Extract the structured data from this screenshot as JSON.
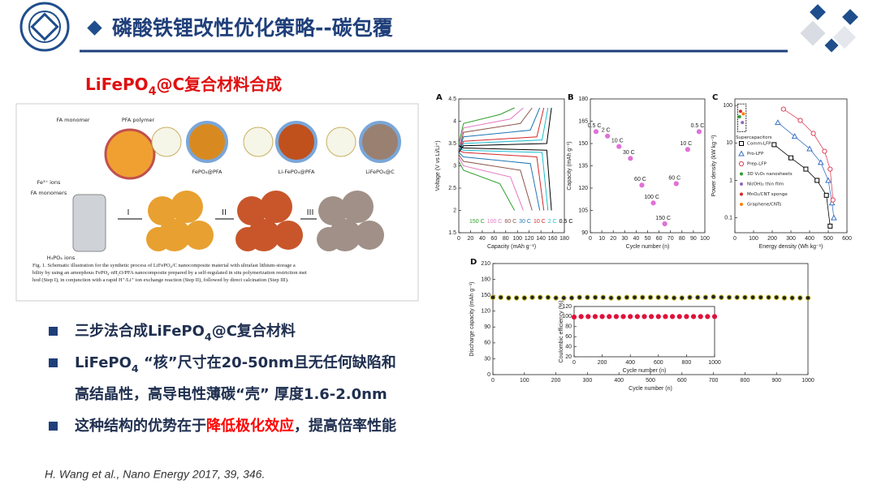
{
  "header": {
    "title": "磷酸铁锂改性优化策略--碳包覆"
  },
  "subtitle": [
    {
      "text": "LiFePO"
    },
    {
      "text": "4",
      "sub": true
    },
    {
      "text": "@C复合材料合成"
    }
  ],
  "figure": {
    "labels": [
      "FA monomer",
      "PFA polymer",
      "FePO₄@PFA",
      "Li-FePO₄@PFA",
      "LiFePO₄@C",
      "Fe³⁺ ions",
      "FA monomers",
      "H₃PO₄ ions",
      "I",
      "II",
      "III"
    ],
    "caption": "Fig. 1. Schematic illustration for the synthetic process of LiFePO₄/C nanocomposite material with ultrafast lithium-storage ability by using an amorphous FePO₄·nH₂O/PFA nanocomposite prepared by a self-regulated in situ polymerization restriction method (Step I), in conjunction with a rapid H⁺/Li⁺ ion exchange reaction (Step II), followed by direct calcination (Step III)."
  },
  "panels": [
    {
      "type": "line",
      "letter": "A",
      "xlabel": "Capacity (mAh g⁻¹)",
      "ylabel": "Voltage (V vs Li/Li⁺)",
      "xlim": [
        0,
        180
      ],
      "ylim": [
        1.5,
        4.5
      ],
      "xticks": [
        0,
        20,
        40,
        60,
        80,
        100,
        120,
        140,
        160,
        180
      ],
      "yticks": [
        1.5,
        2.0,
        2.5,
        3.0,
        3.5,
        4.0,
        4.5
      ],
      "series": [
        {
          "name": "150 C",
          "color": "#2ca02c",
          "x": [
            0,
            8,
            70,
            95
          ],
          "discharge": [
            3.1,
            2.9,
            2.6,
            2.0
          ],
          "charge": [
            3.5,
            3.95,
            4.15,
            4.3
          ]
        },
        {
          "name": "100 C",
          "color": "#e377c2",
          "x": [
            0,
            8,
            88,
            110
          ],
          "discharge": [
            3.2,
            3.0,
            2.75,
            2.0
          ],
          "charge": [
            3.4,
            3.85,
            4.05,
            4.3
          ]
        },
        {
          "name": "60 C",
          "color": "#8c564b",
          "x": [
            0,
            8,
            105,
            125
          ],
          "discharge": [
            3.25,
            3.1,
            2.9,
            2.0
          ],
          "charge": [
            3.3,
            3.75,
            3.95,
            4.3
          ]
        },
        {
          "name": "30 C",
          "color": "#1f77b4",
          "x": [
            0,
            8,
            122,
            138
          ],
          "discharge": [
            3.3,
            3.2,
            3.05,
            2.0
          ],
          "charge": [
            3.3,
            3.65,
            3.8,
            4.3
          ]
        },
        {
          "name": "10 C",
          "color": "#d62728",
          "x": [
            0,
            8,
            133,
            145
          ],
          "discharge": [
            3.35,
            3.3,
            3.2,
            2.0
          ],
          "charge": [
            3.3,
            3.55,
            3.65,
            4.3
          ]
        },
        {
          "name": "2 C",
          "color": "#17becf",
          "x": [
            0,
            8,
            142,
            152
          ],
          "discharge": [
            3.4,
            3.35,
            3.3,
            2.0
          ],
          "charge": [
            3.3,
            3.5,
            3.58,
            4.3
          ]
        },
        {
          "name": "0.5 C",
          "color": "#000000",
          "x": [
            0,
            8,
            150,
            158
          ],
          "discharge": [
            3.45,
            3.4,
            3.35,
            2.0
          ],
          "charge": [
            3.3,
            3.45,
            3.5,
            4.3
          ]
        }
      ]
    },
    {
      "type": "scatter",
      "letter": "B",
      "xlabel": "Cycle number (n)",
      "ylabel": "Capacity (mAh g⁻¹)",
      "xlim": [
        0,
        100
      ],
      "ylim": [
        90,
        180
      ],
      "xticks": [
        0,
        10,
        20,
        30,
        40,
        50,
        60,
        70,
        80,
        90,
        100
      ],
      "yticks": [
        90,
        105,
        120,
        135,
        150,
        165,
        180
      ],
      "series": [
        {
          "color": "#e070d8",
          "x": [
            5,
            15,
            25,
            35,
            45,
            55,
            65,
            75,
            85,
            95
          ],
          "values": [
            158,
            155,
            148,
            140,
            122,
            110,
            96,
            123,
            146,
            158
          ],
          "point_labels": [
            "0.5 C",
            "2 C",
            "10 C",
            "30 C",
            "60 C",
            "100 C",
            "150 C",
            "60 C",
            "10 C",
            "0.5 C"
          ]
        }
      ]
    },
    {
      "type": "scatter",
      "letter": "C",
      "xlabel": "Energy density (Wh kg⁻¹)",
      "ylabel": "Power density (kW kg⁻¹)",
      "log_y": true,
      "xlim": [
        0,
        600
      ],
      "ylim": [
        0.04,
        150
      ],
      "xticks": [
        0,
        100,
        200,
        300,
        400,
        500,
        600
      ],
      "yticks": [
        0.1,
        1,
        10,
        100
      ],
      "annotation": "Supercapacitors",
      "series": [
        {
          "name": "Comm-LFP",
          "color": "#000000",
          "marker": "square",
          "x": [
            210,
            300,
            380,
            440,
            490,
            510
          ],
          "values": [
            9,
            4,
            2,
            1,
            0.4,
            0.06
          ]
        },
        {
          "name": "Pro-LFP",
          "color": "#3a6fc4",
          "marker": "triangle",
          "x": [
            230,
            320,
            400,
            460,
            500,
            520,
            530
          ],
          "values": [
            35,
            15,
            7,
            3,
            1,
            0.25,
            0.1
          ]
        },
        {
          "name": "Prep-LFP",
          "color": "#e0405a",
          "marker": "circle",
          "x": [
            260,
            350,
            420,
            480,
            510,
            525
          ],
          "values": [
            80,
            40,
            18,
            6,
            2,
            0.3
          ]
        },
        {
          "name": "3D V₂O₅ nanosheets",
          "color": "#2ca02c",
          "marker": "dot",
          "x": [
            25
          ],
          "values": [
            50
          ]
        },
        {
          "name": "Ni(OH)₂ thin film",
          "color": "#9467bd",
          "marker": "dot",
          "x": [
            40
          ],
          "values": [
            35
          ]
        },
        {
          "name": "MnO₂/CNT sponge",
          "color": "#d62728",
          "marker": "dot",
          "x": [
            30
          ],
          "values": [
            70
          ]
        },
        {
          "name": "Graphene/CNTs",
          "color": "#ff7f0e",
          "marker": "dot",
          "x": [
            45
          ],
          "values": [
            60
          ]
        }
      ]
    },
    {
      "type": "scatter",
      "letter": "D",
      "xlabel": "Cycle number (n)",
      "ylabel": "Discharge capacity (mAh g⁻¹)",
      "xlim": [
        0,
        1000
      ],
      "ylim": [
        0,
        210
      ],
      "xticks": [
        0,
        100,
        200,
        300,
        400,
        500,
        600,
        700,
        800,
        900,
        1000
      ],
      "yticks": [
        0,
        30,
        60,
        90,
        120,
        150,
        180,
        210
      ],
      "series": [
        {
          "color": "#111111",
          "x": [
            0,
            25,
            50,
            75,
            100,
            125,
            150,
            175,
            200,
            225,
            250,
            275,
            300,
            325,
            350,
            375,
            400,
            425,
            450,
            475,
            500,
            525,
            550,
            575,
            600,
            625,
            650,
            675,
            700,
            725,
            750,
            775,
            800,
            825,
            850,
            875,
            900,
            925,
            950,
            975,
            1000
          ],
          "values": [
            146,
            146,
            145,
            145,
            145,
            146,
            146,
            146,
            145,
            145,
            145,
            146,
            146,
            146,
            146,
            145,
            145,
            146,
            146,
            146,
            146,
            146,
            146,
            145,
            145,
            146,
            146,
            146,
            147,
            146,
            146,
            146,
            146,
            146,
            146,
            146,
            146,
            145,
            145,
            145,
            145
          ]
        }
      ],
      "inset": {
        "xlabel": "Cycle number (n)",
        "ylabel": "Coulombic efficiency (%)",
        "xlim": [
          0,
          1000
        ],
        "ylim": [
          20,
          120
        ],
        "xticks": [
          0,
          200,
          400,
          600,
          800,
          1000
        ],
        "yticks": [
          20,
          40,
          60,
          80,
          100,
          120
        ],
        "series": [
          {
            "color": "#e0103a",
            "x": [
              0,
              50,
              100,
              150,
              200,
              250,
              300,
              350,
              400,
              450,
              500,
              550,
              600,
              650,
              700,
              750,
              800,
              850,
              900,
              950,
              1000
            ],
            "values": [
              99,
              100,
              100,
              100,
              100,
              100,
              100,
              100,
              100,
              100,
              100,
              100,
              100,
              100,
              100,
              100,
              100,
              100,
              100,
              100,
              100
            ]
          }
        ]
      }
    }
  ],
  "bullets": [
    {
      "lines": [
        [
          {
            "text": "三步法合成LiFePO"
          },
          {
            "text": "4",
            "sub": true
          },
          {
            "text": "@C复合材料"
          }
        ]
      ]
    },
    {
      "lines": [
        [
          {
            "text": " LiFePO"
          },
          {
            "text": "4",
            "sub": true
          },
          {
            "text": " “核”尺寸在20-50nm且无任何缺陷和"
          }
        ],
        [
          {
            "text": "高结晶性，高导电性薄碳“壳” 厚度1.6-2.0nm"
          }
        ]
      ]
    },
    {
      "lines": [
        [
          {
            "text": "这种结构的优势在于"
          },
          {
            "text": "降低极化效应",
            "color": "#ff0000"
          },
          {
            "text": "，提高倍率性能"
          }
        ]
      ]
    }
  ],
  "citation": "H. Wang et al., Nano Energy 2017, 39, 346."
}
